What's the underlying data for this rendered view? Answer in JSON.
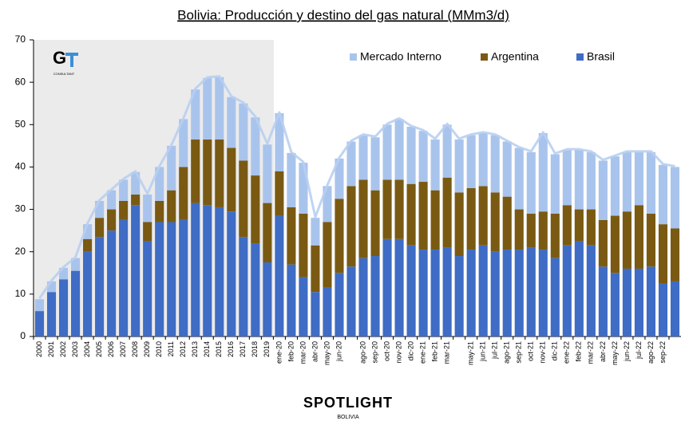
{
  "chart_data": {
    "type": "stacked_bar",
    "title": "Bolivia: Producción y destino del gas natural  (MMm3/d)",
    "logo_text": "CONSULTANT",
    "footer": "SPOTLIGHT",
    "footer_sub": "BOLIVIA",
    "categories": [
      "2000",
      "2001",
      "2002",
      "2003",
      "2004",
      "2005",
      "2006",
      "2007",
      "2008",
      "2009",
      "2010",
      "2011",
      "2012",
      "2013",
      "2014",
      "2015",
      "2016",
      "2017",
      "2018",
      "2019",
      "ene-20",
      "feb-20",
      "mar-20",
      "abr-20",
      "may-20",
      "jun-20",
      null,
      "ago-20",
      "sep-20",
      "oct-20",
      "nov-20",
      "dic-20",
      "ene-21",
      "feb-21",
      "mar-21",
      null,
      "may-21",
      "jun-21",
      "jul-21",
      "ago-21",
      "sep-21",
      "oct-21",
      "nov-21",
      "dic-21",
      "ene-22",
      "feb-22",
      "mar-22",
      "abr-22",
      "may-22",
      "jun-22",
      "jul-22",
      "ago-22",
      "sep-22",
      null
    ],
    "series": [
      {
        "name": "Brasil",
        "color": "#3f6cc4",
        "values": [
          6,
          10.5,
          13.5,
          15.5,
          20,
          23.5,
          25,
          27.5,
          31,
          22.5,
          27,
          27,
          27.5,
          31.5,
          31,
          30.5,
          29.5,
          23.5,
          22,
          17.5,
          28.5,
          17,
          14,
          10.5,
          11.5,
          15,
          16.5,
          18.5,
          19,
          23,
          23,
          21.5,
          20.5,
          20.5,
          21,
          19,
          20.5,
          21.5,
          20,
          20.5,
          20.5,
          21,
          20.5,
          18.5,
          21.5,
          22.5,
          21.5,
          16.5,
          15,
          16,
          16,
          16.5,
          12.5,
          13
        ]
      },
      {
        "name": "Argentina",
        "color": "#7a5a12",
        "values": [
          0,
          0,
          0,
          0,
          3,
          4.5,
          5,
          4.5,
          2.5,
          4.5,
          5,
          7.5,
          12.5,
          15,
          15.5,
          16,
          15,
          18,
          16,
          14,
          10.5,
          13.5,
          15,
          11,
          15.5,
          17.5,
          19,
          18.5,
          15.5,
          14,
          14,
          14.5,
          16,
          14,
          16.5,
          15,
          14.5,
          14,
          14,
          12.5,
          9.5,
          8,
          9,
          10.5,
          9.5,
          7.5,
          8.5,
          11,
          13.5,
          13.5,
          15,
          12.5,
          14,
          12.5
        ]
      },
      {
        "name": "Mercado Interno",
        "color": "#a9c4ec",
        "values": [
          2.8,
          2.5,
          2.7,
          3,
          3.5,
          4,
          4.5,
          5,
          5.3,
          6.5,
          8,
          10.5,
          11.3,
          11.8,
          14.5,
          14.7,
          12,
          13.5,
          13.7,
          13.8,
          13.7,
          12.8,
          12,
          6.5,
          8.5,
          9.5,
          10.5,
          10.5,
          12.5,
          13,
          14.3,
          13.5,
          12,
          12,
          12.5,
          12.5,
          12.5,
          12.5,
          13.5,
          13,
          14.5,
          14.5,
          18.5,
          14,
          13,
          14,
          13.5,
          14,
          14,
          14,
          12.5,
          14.5,
          14,
          14.5
        ]
      }
    ],
    "line_color": "#b9cff1",
    "ylim": [
      0,
      70
    ],
    "yticks": [
      0,
      10,
      20,
      30,
      40,
      50,
      60,
      70
    ],
    "grid": false,
    "legend": "top-right"
  }
}
